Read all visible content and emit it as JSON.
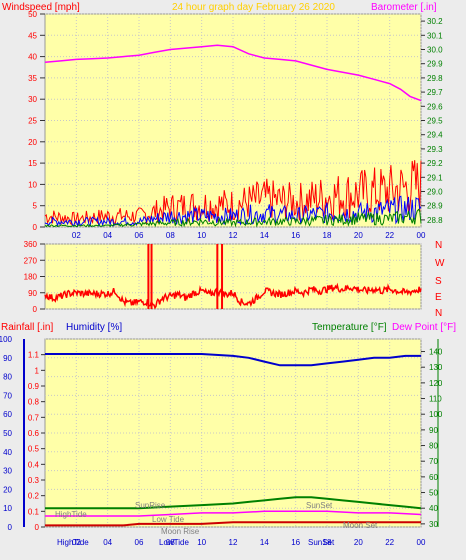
{
  "header": {
    "left_title": "Windspeed [mph]",
    "center_title": "24 hour graph day  February 26 2020",
    "right_title": "Barometer [.in]"
  },
  "colors": {
    "plot_bg": "#ffffa8",
    "window_bg": "#ececec",
    "gust": "#ff0000",
    "wind_avg": "#0000ff",
    "wind_low": "#008000",
    "barometer": "#ff00ff",
    "humidity": "#0000cc",
    "temperature": "#008000",
    "dew_point": "#ff00ff",
    "rainfall": "#cc0000",
    "title_red": "#ff0000",
    "title_yellow": "#ffd000",
    "axis_green": "#008000"
  },
  "panel3_titles": {
    "rainfall": "Rainfall [.in]",
    "humidity": "Humidity [%]",
    "temperature": "Temperature [°F]",
    "dew_point": "Dew Point [°F]"
  },
  "direction_labels": [
    "N",
    "W",
    "S",
    "E",
    "N"
  ],
  "x_ticks": [
    "02",
    "04",
    "06",
    "08",
    "10",
    "12",
    "14",
    "16",
    "18",
    "20",
    "22",
    "00"
  ],
  "chart_data": [
    {
      "type": "line",
      "id": "wind_barometer",
      "x_hours": [
        0,
        24
      ],
      "wind_ylim": [
        0,
        50
      ],
      "wind_ticks": [
        0,
        5,
        10,
        15,
        20,
        25,
        30,
        35,
        40,
        45,
        50
      ],
      "baro_ylim": [
        28.75,
        30.25
      ],
      "baro_ticks": [
        28.8,
        28.9,
        29.0,
        29.1,
        29.2,
        29.3,
        29.4,
        29.5,
        29.6,
        29.7,
        29.8,
        29.9,
        30.0,
        30.1,
        30.2
      ],
      "barometer": {
        "x": [
          0,
          1,
          2,
          3,
          4,
          5,
          6,
          7,
          8,
          9,
          10,
          11,
          12,
          13,
          14,
          15,
          16,
          17,
          18,
          19,
          20,
          21,
          22,
          22.7,
          23.3,
          24
        ],
        "y": [
          29.91,
          29.92,
          29.93,
          29.935,
          29.94,
          29.95,
          29.96,
          29.98,
          30.0,
          30.01,
          30.02,
          30.03,
          30.02,
          29.97,
          29.94,
          29.93,
          29.92,
          29.89,
          29.86,
          29.84,
          29.82,
          29.79,
          29.76,
          29.72,
          29.67,
          29.64
        ]
      },
      "gust_envelope": {
        "x": [
          0,
          2,
          4,
          6,
          8,
          10,
          12,
          14,
          16,
          18,
          20,
          22,
          24
        ],
        "y": [
          4,
          3,
          4,
          4,
          7,
          8,
          8,
          10,
          9,
          11,
          12,
          13,
          15
        ]
      },
      "avg_envelope": {
        "x": [
          0,
          2,
          4,
          6,
          8,
          10,
          12,
          14,
          16,
          18,
          20,
          22,
          24
        ],
        "y": [
          2,
          2,
          2,
          2,
          4,
          4,
          4,
          5,
          4,
          5,
          5,
          6,
          7
        ]
      },
      "low_envelope": {
        "x": [
          0,
          2,
          4,
          6,
          8,
          10,
          12,
          14,
          16,
          18,
          20,
          22,
          24
        ],
        "y": [
          0.5,
          0.5,
          0.5,
          1,
          1.5,
          2,
          1.5,
          2,
          2,
          2.5,
          3,
          3,
          4
        ]
      }
    },
    {
      "type": "line",
      "id": "wind_direction",
      "ylim": [
        0,
        360
      ],
      "ticks": [
        0,
        90,
        180,
        270,
        360
      ],
      "x": [
        0,
        0.5,
        1,
        1.5,
        2,
        2.5,
        3,
        3.5,
        4,
        4.5,
        5,
        5.5,
        6,
        6.5,
        7,
        7.5,
        8,
        8.5,
        9,
        9.5,
        10,
        10.5,
        11,
        11.5,
        12,
        12.5,
        13,
        13.5,
        14,
        14.5,
        15,
        15.5,
        16,
        16.5,
        17,
        17.5,
        18,
        18.5,
        19,
        19.5,
        20,
        20.5,
        21,
        21.5,
        22,
        22.5,
        23,
        23.5,
        24
      ],
      "y": [
        80,
        60,
        70,
        85,
        90,
        85,
        85,
        85,
        85,
        100,
        40,
        30,
        40,
        40,
        20,
        60,
        70,
        80,
        60,
        90,
        100,
        80,
        100,
        80,
        90,
        40,
        30,
        60,
        100,
        90,
        80,
        90,
        100,
        90,
        110,
        100,
        110,
        120,
        110,
        120,
        110,
        100,
        110,
        100,
        110,
        100,
        90,
        100,
        110
      ],
      "spikes_x": [
        6.6,
        6.8,
        11.0,
        11.3
      ]
    },
    {
      "type": "line",
      "id": "humidity_temp_rain",
      "rain_ylim": [
        0,
        1.2
      ],
      "rain_ticks": [
        0,
        0.1,
        0.2,
        0.3,
        0.4,
        0.5,
        0.6,
        0.7,
        0.8,
        0.9,
        1,
        1.1
      ],
      "humidity_ylim": [
        0,
        100
      ],
      "humidity_ticks": [
        0,
        10,
        20,
        30,
        40,
        50,
        60,
        70,
        80,
        90,
        100
      ],
      "temp_ylim": [
        28,
        148
      ],
      "temp_ticks": [
        30,
        40,
        50,
        60,
        70,
        80,
        90,
        100,
        110,
        120,
        130,
        140
      ],
      "humidity": {
        "x": [
          0,
          2,
          4,
          6,
          8,
          10,
          12,
          13,
          14,
          15,
          16,
          17,
          18,
          19,
          20,
          21,
          22,
          23,
          24
        ],
        "y": [
          92,
          92,
          92,
          92,
          92,
          92,
          91,
          90,
          88,
          86,
          86,
          86,
          87,
          88,
          89,
          90,
          90,
          91,
          91
        ]
      },
      "temperature": {
        "x": [
          0,
          2,
          4,
          6,
          8,
          10,
          12,
          13,
          14,
          15,
          16,
          17,
          18,
          19,
          20,
          21,
          22,
          23,
          24
        ],
        "y": [
          40,
          40,
          40,
          40,
          41,
          42,
          43,
          44,
          45,
          46,
          47,
          47,
          46,
          45,
          44,
          43,
          42,
          41,
          40
        ]
      },
      "dew_point": {
        "x": [
          0,
          2,
          4,
          6,
          8,
          10,
          12,
          14,
          16,
          18,
          20,
          22,
          24
        ],
        "y": [
          35,
          35,
          35,
          35,
          36,
          37,
          37,
          38,
          38,
          38,
          37,
          37,
          36
        ]
      },
      "rainfall": {
        "x": [
          0,
          5,
          6,
          10,
          12,
          24
        ],
        "y": [
          0.01,
          0.01,
          0.02,
          0.02,
          0.03,
          0.03
        ]
      },
      "annotations": {
        "sun_rise": "SunRise",
        "sun_set": "SunSet",
        "sun_set_axis": "SunSet",
        "moon_rise": "Moon Rise",
        "moon_set": "Moon Set",
        "low_tide": "Low Tide",
        "low_tide_axis": "LowTide",
        "high_tide": "HighTide",
        "high_tide_axis": "HighTide"
      }
    }
  ]
}
